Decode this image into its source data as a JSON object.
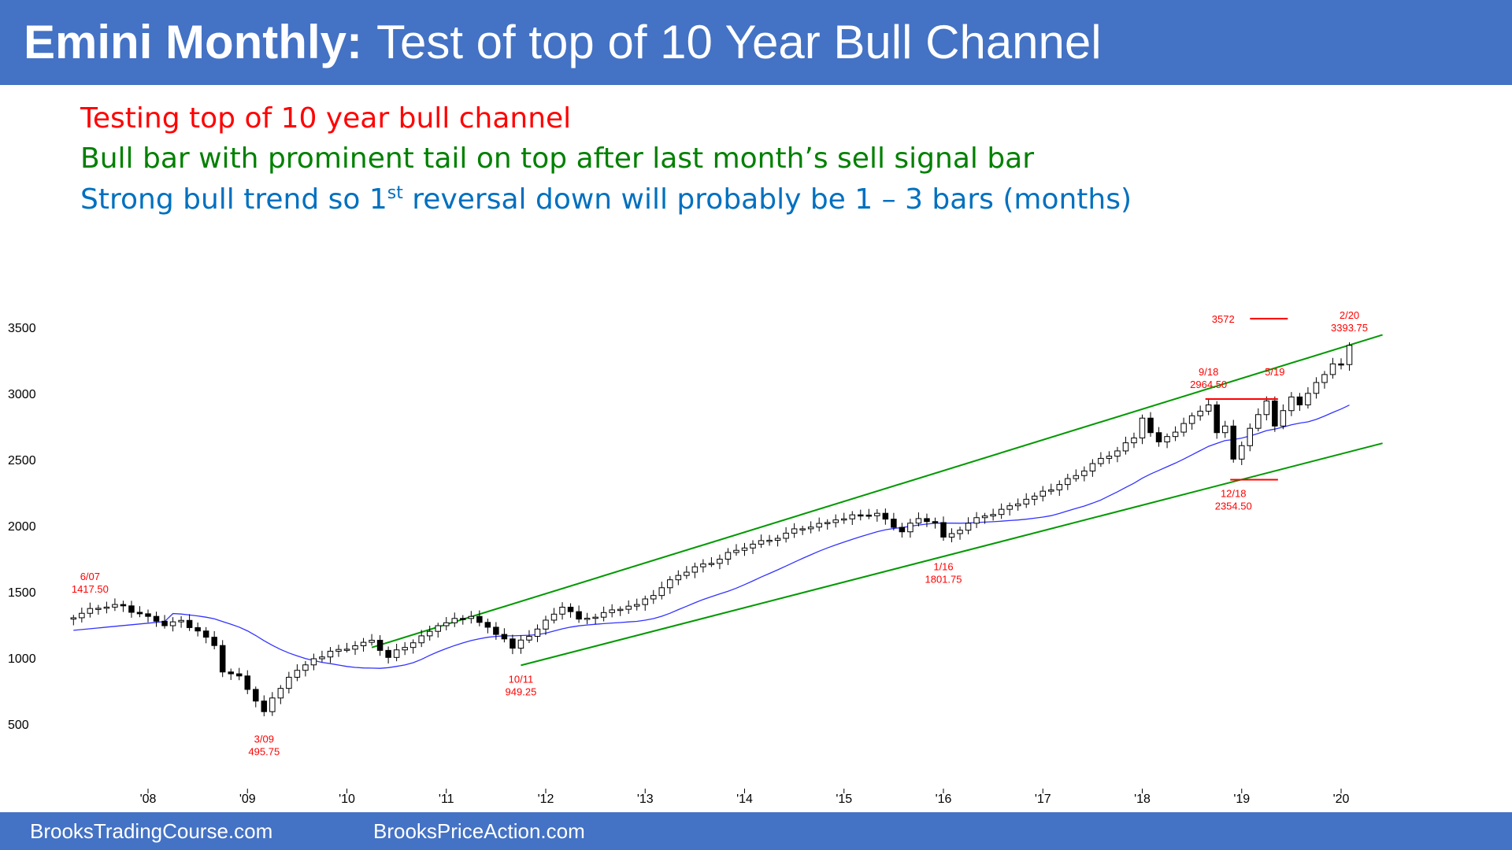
{
  "header": {
    "title_bold": "Emini Monthly:",
    "title_rest": "Test of top of 10 Year Bull Channel",
    "bg_color": "#4472c4"
  },
  "bullets": [
    {
      "text": "Testing top of 10 year bull channel",
      "color": "#ff0000"
    },
    {
      "text": "Bull bar with prominent tail on top after last month’s sell signal bar",
      "color": "#008000"
    },
    {
      "pre": "Strong bull trend so 1",
      "sup": "st",
      "post": " reversal down will probably be 1 – 3 bars (months)",
      "color": "#0070c0"
    }
  ],
  "chart_data": {
    "type": "candlestick",
    "ylim": [
      200,
      3750
    ],
    "y_ticks": [
      500,
      1000,
      1500,
      2000,
      2500,
      3000,
      3500
    ],
    "x_ticks": [
      "'08",
      "'09",
      "'10",
      "'11",
      "'12",
      "'13",
      "'14",
      "'15",
      "'16",
      "'17",
      "'18",
      "'19",
      "'20"
    ],
    "x_range": [
      "2007-04",
      "2020-06"
    ],
    "series": [
      {
        "type": "moving_average",
        "color": "#3333ff"
      },
      {
        "type": "trendline",
        "role": "channel_top",
        "color": "#009900",
        "points": [
          [
            "2010-04",
            1085
          ],
          [
            "2020-06",
            3450
          ]
        ]
      },
      {
        "type": "trendline",
        "role": "channel_bottom",
        "color": "#009900",
        "points": [
          [
            "2011-10",
            950
          ],
          [
            "2020-06",
            2630
          ]
        ]
      }
    ],
    "price_anchors": [
      {
        "date": "2007-04",
        "close": 1310
      },
      {
        "date": "2007-06",
        "close": 1380
      },
      {
        "date": "2007-10",
        "close": 1400
      },
      {
        "date": "2007-12",
        "close": 1340
      },
      {
        "date": "2008-03",
        "close": 1250
      },
      {
        "date": "2008-05",
        "close": 1290
      },
      {
        "date": "2008-07",
        "close": 1210
      },
      {
        "date": "2008-09",
        "close": 1100
      },
      {
        "date": "2008-10",
        "close": 900
      },
      {
        "date": "2008-12",
        "close": 870
      },
      {
        "date": "2009-02",
        "close": 680
      },
      {
        "date": "2009-03",
        "close": 600
      },
      {
        "date": "2009-06",
        "close": 860
      },
      {
        "date": "2009-09",
        "close": 1000
      },
      {
        "date": "2010-04",
        "close": 1140
      },
      {
        "date": "2010-06",
        "close": 1010
      },
      {
        "date": "2010-12",
        "close": 1250
      },
      {
        "date": "2011-04",
        "close": 1320
      },
      {
        "date": "2011-08",
        "close": 1150
      },
      {
        "date": "2011-09",
        "close": 1080
      },
      {
        "date": "2012-03",
        "close": 1390
      },
      {
        "date": "2012-05",
        "close": 1300
      },
      {
        "date": "2012-12",
        "close": 1410
      },
      {
        "date": "2013-05",
        "close": 1630
      },
      {
        "date": "2013-12",
        "close": 1820
      },
      {
        "date": "2014-06",
        "close": 1950
      },
      {
        "date": "2014-12",
        "close": 2050
      },
      {
        "date": "2015-05",
        "close": 2100
      },
      {
        "date": "2015-08",
        "close": 1960
      },
      {
        "date": "2015-10",
        "close": 2060
      },
      {
        "date": "2015-12",
        "close": 2030
      },
      {
        "date": "2016-01",
        "close": 1920
      },
      {
        "date": "2016-06",
        "close": 2080
      },
      {
        "date": "2016-12",
        "close": 2230
      },
      {
        "date": "2017-06",
        "close": 2420
      },
      {
        "date": "2017-12",
        "close": 2670
      },
      {
        "date": "2018-01",
        "close": 2820
      },
      {
        "date": "2018-02",
        "close": 2710
      },
      {
        "date": "2018-03",
        "close": 2640
      },
      {
        "date": "2018-09",
        "close": 2920
      },
      {
        "date": "2018-10",
        "close": 2710
      },
      {
        "date": "2018-11",
        "close": 2760
      },
      {
        "date": "2018-12",
        "close": 2510
      },
      {
        "date": "2019-04",
        "close": 2950
      },
      {
        "date": "2019-05",
        "close": 2760
      },
      {
        "date": "2019-07",
        "close": 2980
      },
      {
        "date": "2019-08",
        "close": 2920
      },
      {
        "date": "2019-12",
        "close": 3230
      },
      {
        "date": "2020-01",
        "close": 3225
      },
      {
        "date": "2020-02",
        "close": 3370
      }
    ],
    "annotations": [
      {
        "date": "2007-06",
        "label": "6/07",
        "value": "1417.50",
        "price": 1417.5,
        "position": "above"
      },
      {
        "date": "2009-03",
        "label": "3/09",
        "value": "495.75",
        "price": 495.75,
        "position": "below"
      },
      {
        "date": "2011-10",
        "label": "10/11",
        "value": "949.25",
        "price": 949.25,
        "position": "below"
      },
      {
        "date": "2016-01",
        "label": "1/16",
        "value": "1801.75",
        "price": 1801.75,
        "position": "below"
      },
      {
        "date": "2018-09",
        "label": "9/18",
        "value": "2964.50",
        "price": 2964.5,
        "position": "above"
      },
      {
        "date": "2018-12",
        "label": "12/18",
        "value": "2354.50",
        "price": 2354.5,
        "position": "below"
      },
      {
        "date": "2019-05",
        "label": "5/19",
        "value": "",
        "price": 2965,
        "position": "above"
      },
      {
        "date": "2020-02",
        "label": "2/20",
        "value": "3393.75",
        "price": 3393.75,
        "position": "above"
      }
    ],
    "target": {
      "label": "3572",
      "value": 3572,
      "color": "#ff0000"
    },
    "key_levels": [
      {
        "value": 2964.5,
        "from": "2018-09",
        "to": "2019-05",
        "color": "#ff0000"
      },
      {
        "value": 2354.5,
        "from": "2018-12",
        "to": "2019-05",
        "color": "#ff0000"
      }
    ],
    "colors": {
      "bull": "#ffffff",
      "bear": "#000000",
      "label": "#ff0000"
    }
  },
  "footer": {
    "left": "BrooksTradingCourse.com",
    "right": "BrooksPriceAction.com"
  }
}
